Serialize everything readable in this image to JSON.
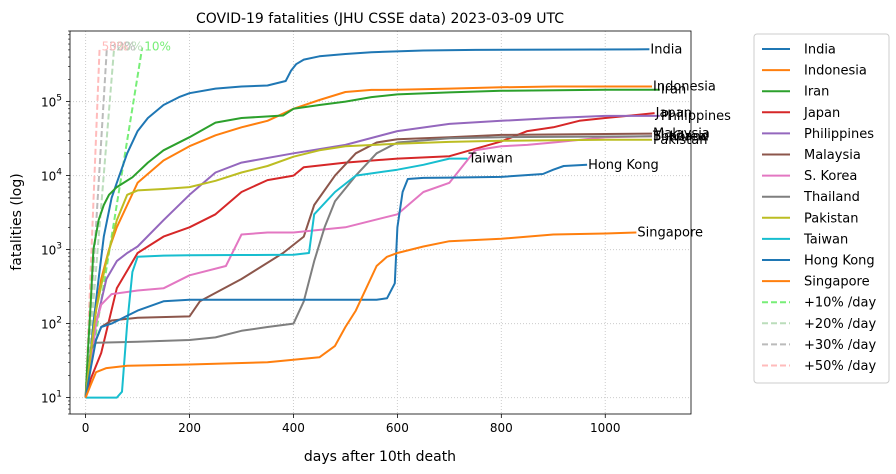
{
  "chart_data": {
    "type": "line",
    "title": "COVID-19 fatalities (JHU CSSE data) 2023-03-09 UTC",
    "xlabel": "days after 10th death",
    "ylabel": "fatalities (log)",
    "xlim": [
      -30,
      1165
    ],
    "ylim": [
      6,
      900000
    ],
    "yscale": "log",
    "grid": true,
    "legend_position": "right-outside",
    "x_ticks": [
      0,
      200,
      400,
      600,
      800,
      1000
    ],
    "y_ticks": [
      {
        "value": 10,
        "base": "10",
        "exp": "1"
      },
      {
        "value": 100,
        "base": "10",
        "exp": "2"
      },
      {
        "value": 1000,
        "base": "10",
        "exp": "3"
      },
      {
        "value": 10000,
        "base": "10",
        "exp": "4"
      },
      {
        "value": 100000,
        "base": "10",
        "exp": "5"
      }
    ],
    "series": [
      {
        "name": "India",
        "color": "#1f77b4",
        "label": "India",
        "label_at": [
          1085,
          510000
        ],
        "points": [
          [
            0,
            10
          ],
          [
            8,
            30
          ],
          [
            15,
            100
          ],
          [
            25,
            400
          ],
          [
            35,
            1500
          ],
          [
            50,
            5000
          ],
          [
            60,
            8000
          ],
          [
            80,
            20000
          ],
          [
            100,
            40000
          ],
          [
            120,
            60000
          ],
          [
            150,
            90000
          ],
          [
            180,
            115000
          ],
          [
            200,
            130000
          ],
          [
            250,
            150000
          ],
          [
            300,
            160000
          ],
          [
            350,
            165000
          ],
          [
            385,
            190000
          ],
          [
            395,
            260000
          ],
          [
            405,
            320000
          ],
          [
            420,
            370000
          ],
          [
            450,
            410000
          ],
          [
            500,
            440000
          ],
          [
            550,
            465000
          ],
          [
            650,
            490000
          ],
          [
            750,
            500000
          ],
          [
            900,
            505000
          ],
          [
            1085,
            510000
          ]
        ]
      },
      {
        "name": "Indonesia",
        "color": "#ff7f0e",
        "label": "Indonesia",
        "label_at": [
          1090,
          160000
        ],
        "points": [
          [
            0,
            10
          ],
          [
            10,
            40
          ],
          [
            20,
            150
          ],
          [
            30,
            400
          ],
          [
            45,
            1000
          ],
          [
            60,
            2000
          ],
          [
            80,
            4000
          ],
          [
            100,
            8000
          ],
          [
            150,
            16000
          ],
          [
            200,
            25000
          ],
          [
            250,
            35000
          ],
          [
            300,
            45000
          ],
          [
            350,
            55000
          ],
          [
            400,
            80000
          ],
          [
            450,
            105000
          ],
          [
            500,
            135000
          ],
          [
            550,
            144000
          ],
          [
            600,
            145000
          ],
          [
            700,
            150000
          ],
          [
            800,
            156000
          ],
          [
            900,
            160000
          ],
          [
            1090,
            160000
          ]
        ]
      },
      {
        "name": "Iran",
        "color": "#2ca02c",
        "label": "Iran",
        "label_at": [
          1105,
          145000
        ],
        "points": [
          [
            0,
            10
          ],
          [
            5,
            50
          ],
          [
            10,
            200
          ],
          [
            15,
            1000
          ],
          [
            25,
            2500
          ],
          [
            35,
            4000
          ],
          [
            45,
            5500
          ],
          [
            60,
            7000
          ],
          [
            90,
            9500
          ],
          [
            120,
            15000
          ],
          [
            150,
            22000
          ],
          [
            200,
            33000
          ],
          [
            250,
            52000
          ],
          [
            300,
            60000
          ],
          [
            380,
            65000
          ],
          [
            400,
            80000
          ],
          [
            450,
            90000
          ],
          [
            500,
            100000
          ],
          [
            550,
            115000
          ],
          [
            600,
            125000
          ],
          [
            700,
            133000
          ],
          [
            800,
            140000
          ],
          [
            1000,
            145000
          ],
          [
            1105,
            145000
          ]
        ]
      },
      {
        "name": "Japan",
        "color": "#d62728",
        "label": "Japan",
        "label_at": [
          1095,
          70000
        ],
        "points": [
          [
            0,
            10
          ],
          [
            10,
            18
          ],
          [
            30,
            40
          ],
          [
            60,
            300
          ],
          [
            100,
            900
          ],
          [
            150,
            1500
          ],
          [
            200,
            2000
          ],
          [
            250,
            3000
          ],
          [
            300,
            6000
          ],
          [
            350,
            8700
          ],
          [
            400,
            10000
          ],
          [
            420,
            13000
          ],
          [
            500,
            15000
          ],
          [
            600,
            17000
          ],
          [
            700,
            18300
          ],
          [
            800,
            29000
          ],
          [
            850,
            40000
          ],
          [
            900,
            45000
          ],
          [
            950,
            55000
          ],
          [
            1000,
            60000
          ],
          [
            1050,
            65000
          ],
          [
            1095,
            70000
          ]
        ]
      },
      {
        "name": "Philippines",
        "color": "#9467bd",
        "label": "Philippines",
        "label_at": [
          1105,
          64000
        ],
        "points": [
          [
            0,
            10
          ],
          [
            10,
            30
          ],
          [
            20,
            100
          ],
          [
            40,
            400
          ],
          [
            60,
            700
          ],
          [
            80,
            900
          ],
          [
            100,
            1100
          ],
          [
            150,
            2500
          ],
          [
            200,
            5500
          ],
          [
            250,
            11000
          ],
          [
            300,
            15000
          ],
          [
            400,
            20000
          ],
          [
            500,
            26000
          ],
          [
            600,
            40000
          ],
          [
            700,
            50000
          ],
          [
            800,
            55000
          ],
          [
            900,
            60000
          ],
          [
            1000,
            64000
          ],
          [
            1105,
            64000
          ]
        ]
      },
      {
        "name": "Malaysia",
        "color": "#8c564b",
        "label": "Malaysia",
        "label_at": [
          1090,
          37000
        ],
        "points": [
          [
            0,
            10
          ],
          [
            10,
            40
          ],
          [
            30,
            90
          ],
          [
            50,
            110
          ],
          [
            100,
            120
          ],
          [
            200,
            125
          ],
          [
            220,
            200
          ],
          [
            300,
            400
          ],
          [
            380,
            900
          ],
          [
            420,
            1500
          ],
          [
            440,
            4000
          ],
          [
            480,
            10000
          ],
          [
            520,
            20000
          ],
          [
            560,
            28000
          ],
          [
            600,
            31000
          ],
          [
            700,
            33000
          ],
          [
            800,
            35500
          ],
          [
            1000,
            36500
          ],
          [
            1090,
            37000
          ]
        ]
      },
      {
        "name": "S. Korea",
        "color": "#e377c2",
        "label": "S. Korea",
        "label_at": [
          1090,
          34000
        ],
        "points": [
          [
            0,
            10
          ],
          [
            10,
            30
          ],
          [
            20,
            100
          ],
          [
            30,
            180
          ],
          [
            50,
            250
          ],
          [
            100,
            280
          ],
          [
            150,
            300
          ],
          [
            200,
            450
          ],
          [
            270,
            600
          ],
          [
            300,
            1600
          ],
          [
            350,
            1700
          ],
          [
            400,
            1700
          ],
          [
            500,
            2000
          ],
          [
            600,
            3000
          ],
          [
            650,
            6000
          ],
          [
            700,
            8000
          ],
          [
            750,
            22000
          ],
          [
            800,
            25000
          ],
          [
            850,
            26000
          ],
          [
            900,
            28000
          ],
          [
            1000,
            33000
          ],
          [
            1090,
            34000
          ]
        ]
      },
      {
        "name": "Thailand",
        "color": "#7f7f7f",
        "label": "Thailand",
        "label_at": [
          1090,
          34000
        ],
        "points": [
          [
            0,
            10
          ],
          [
            10,
            45
          ],
          [
            20,
            55
          ],
          [
            100,
            57
          ],
          [
            200,
            60
          ],
          [
            250,
            65
          ],
          [
            300,
            80
          ],
          [
            350,
            90
          ],
          [
            400,
            100
          ],
          [
            420,
            200
          ],
          [
            440,
            700
          ],
          [
            460,
            2000
          ],
          [
            480,
            4500
          ],
          [
            520,
            10000
          ],
          [
            560,
            20000
          ],
          [
            600,
            28000
          ],
          [
            700,
            32000
          ],
          [
            800,
            33000
          ],
          [
            1090,
            34000
          ]
        ]
      },
      {
        "name": "Pakistan",
        "color": "#bcbd22",
        "label": "Pakistan",
        "label_at": [
          1090,
          30500
        ],
        "points": [
          [
            0,
            10
          ],
          [
            10,
            40
          ],
          [
            20,
            150
          ],
          [
            40,
            700
          ],
          [
            60,
            2500
          ],
          [
            80,
            5500
          ],
          [
            100,
            6300
          ],
          [
            150,
            6600
          ],
          [
            200,
            7000
          ],
          [
            250,
            8500
          ],
          [
            300,
            11000
          ],
          [
            350,
            13500
          ],
          [
            400,
            18000
          ],
          [
            450,
            22000
          ],
          [
            500,
            25000
          ],
          [
            600,
            27000
          ],
          [
            700,
            28500
          ],
          [
            800,
            29500
          ],
          [
            1000,
            30500
          ],
          [
            1090,
            30500
          ]
        ]
      },
      {
        "name": "Taiwan",
        "color": "#17becf",
        "label": "Taiwan",
        "label_at": [
          735,
          17000
        ],
        "points": [
          [
            0,
            10
          ],
          [
            60,
            10
          ],
          [
            70,
            12
          ],
          [
            80,
            100
          ],
          [
            90,
            500
          ],
          [
            100,
            800
          ],
          [
            150,
            830
          ],
          [
            200,
            840
          ],
          [
            300,
            845
          ],
          [
            400,
            850
          ],
          [
            430,
            900
          ],
          [
            440,
            3000
          ],
          [
            480,
            6000
          ],
          [
            520,
            10000
          ],
          [
            600,
            12000
          ],
          [
            650,
            14000
          ],
          [
            700,
            17000
          ],
          [
            735,
            17000
          ]
        ]
      },
      {
        "name": "Hong Kong",
        "color": "#1f77b4",
        "label": "Hong Kong",
        "label_at": [
          965,
          14000
        ],
        "points": [
          [
            0,
            10
          ],
          [
            10,
            25
          ],
          [
            20,
            60
          ],
          [
            30,
            90
          ],
          [
            50,
            100
          ],
          [
            100,
            150
          ],
          [
            150,
            200
          ],
          [
            200,
            210
          ],
          [
            400,
            210
          ],
          [
            560,
            210
          ],
          [
            580,
            220
          ],
          [
            595,
            350
          ],
          [
            600,
            2000
          ],
          [
            610,
            6000
          ],
          [
            620,
            9000
          ],
          [
            650,
            9300
          ],
          [
            700,
            9400
          ],
          [
            800,
            9600
          ],
          [
            880,
            10500
          ],
          [
            900,
            12000
          ],
          [
            920,
            13500
          ],
          [
            965,
            14000
          ]
        ]
      },
      {
        "name": "Singapore",
        "color": "#ff7f0e",
        "label": "Singapore",
        "label_at": [
          1060,
          1700
        ],
        "points": [
          [
            0,
            10
          ],
          [
            10,
            15
          ],
          [
            20,
            22
          ],
          [
            40,
            25
          ],
          [
            80,
            27
          ],
          [
            200,
            28
          ],
          [
            350,
            30
          ],
          [
            450,
            35
          ],
          [
            480,
            50
          ],
          [
            500,
            90
          ],
          [
            520,
            150
          ],
          [
            540,
            300
          ],
          [
            560,
            600
          ],
          [
            580,
            800
          ],
          [
            600,
            900
          ],
          [
            650,
            1100
          ],
          [
            700,
            1300
          ],
          [
            800,
            1400
          ],
          [
            900,
            1600
          ],
          [
            1000,
            1650
          ],
          [
            1060,
            1700
          ]
        ]
      }
    ],
    "reference_lines": [
      {
        "name": "+10% /day",
        "color": "#77ee77",
        "label": "10%",
        "days": 109
      },
      {
        "name": "+20% /day",
        "color": "#bbddbb",
        "label": "20%",
        "days": 55
      },
      {
        "name": "+30% /day",
        "color": "#bbbbbb",
        "label": "30%",
        "days": 41
      },
      {
        "name": "+50% /day",
        "color": "#ffbbbb",
        "label": "50%",
        "days": 27
      }
    ]
  }
}
